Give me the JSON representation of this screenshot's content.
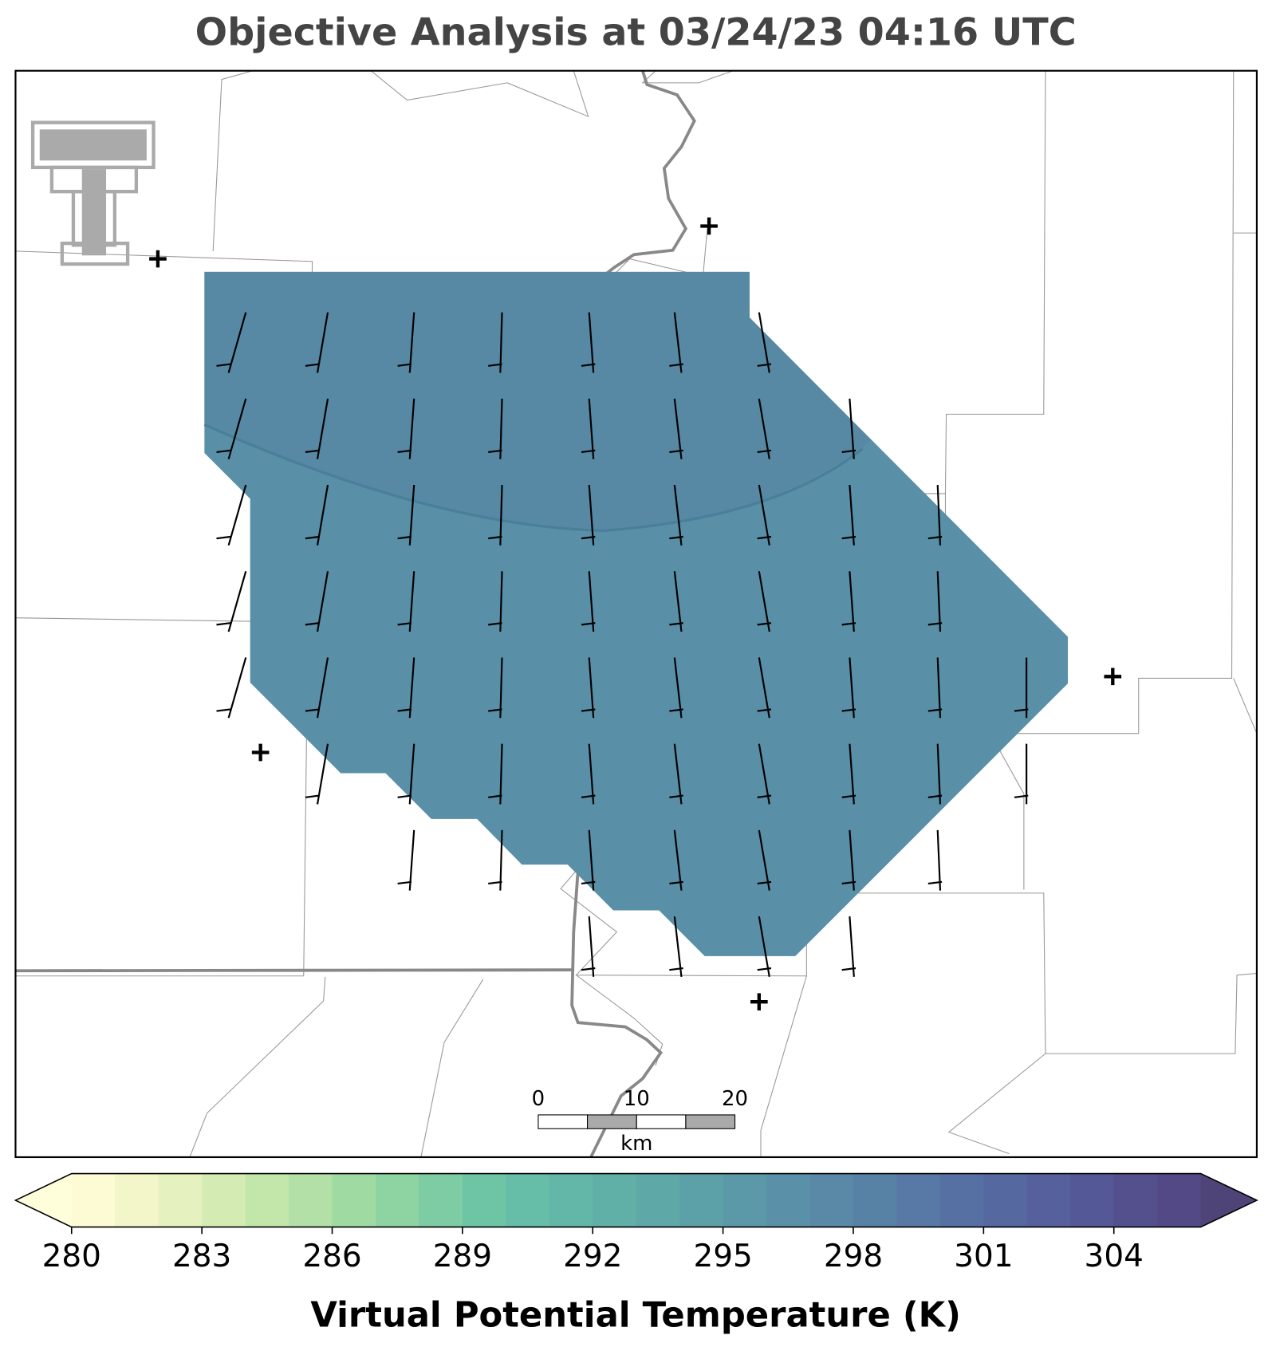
{
  "title": "Objective Analysis at 03/24/23 04:16 UTC",
  "scale_bar": {
    "ticks": [
      0,
      10,
      20
    ],
    "unit": "km"
  },
  "colorbar": {
    "label": "Virtual Potential Temperature (K)",
    "lim": [
      280,
      306
    ],
    "ticks": [
      280,
      283,
      286,
      289,
      292,
      295,
      298,
      301,
      304
    ],
    "colors": [
      "#fcfbd3",
      "#f3f6c9",
      "#e5f1bf",
      "#d4ecb3",
      "#c3e6ab",
      "#b2e0a6",
      "#a0daa3",
      "#8ed3a2",
      "#7dcca3",
      "#6ec5a5",
      "#66bea8",
      "#62b7a8",
      "#60b0a8",
      "#5ea8a8",
      "#5da1a8",
      "#5b99a8",
      "#5a91a8",
      "#5989a7",
      "#5881a6",
      "#5879a5",
      "#5770a3",
      "#5668a0",
      "#56609c",
      "#555896",
      "#54508e",
      "#534986"
    ],
    "extend_colors": [
      "#fefedb",
      "#4f4478"
    ]
  }
}
